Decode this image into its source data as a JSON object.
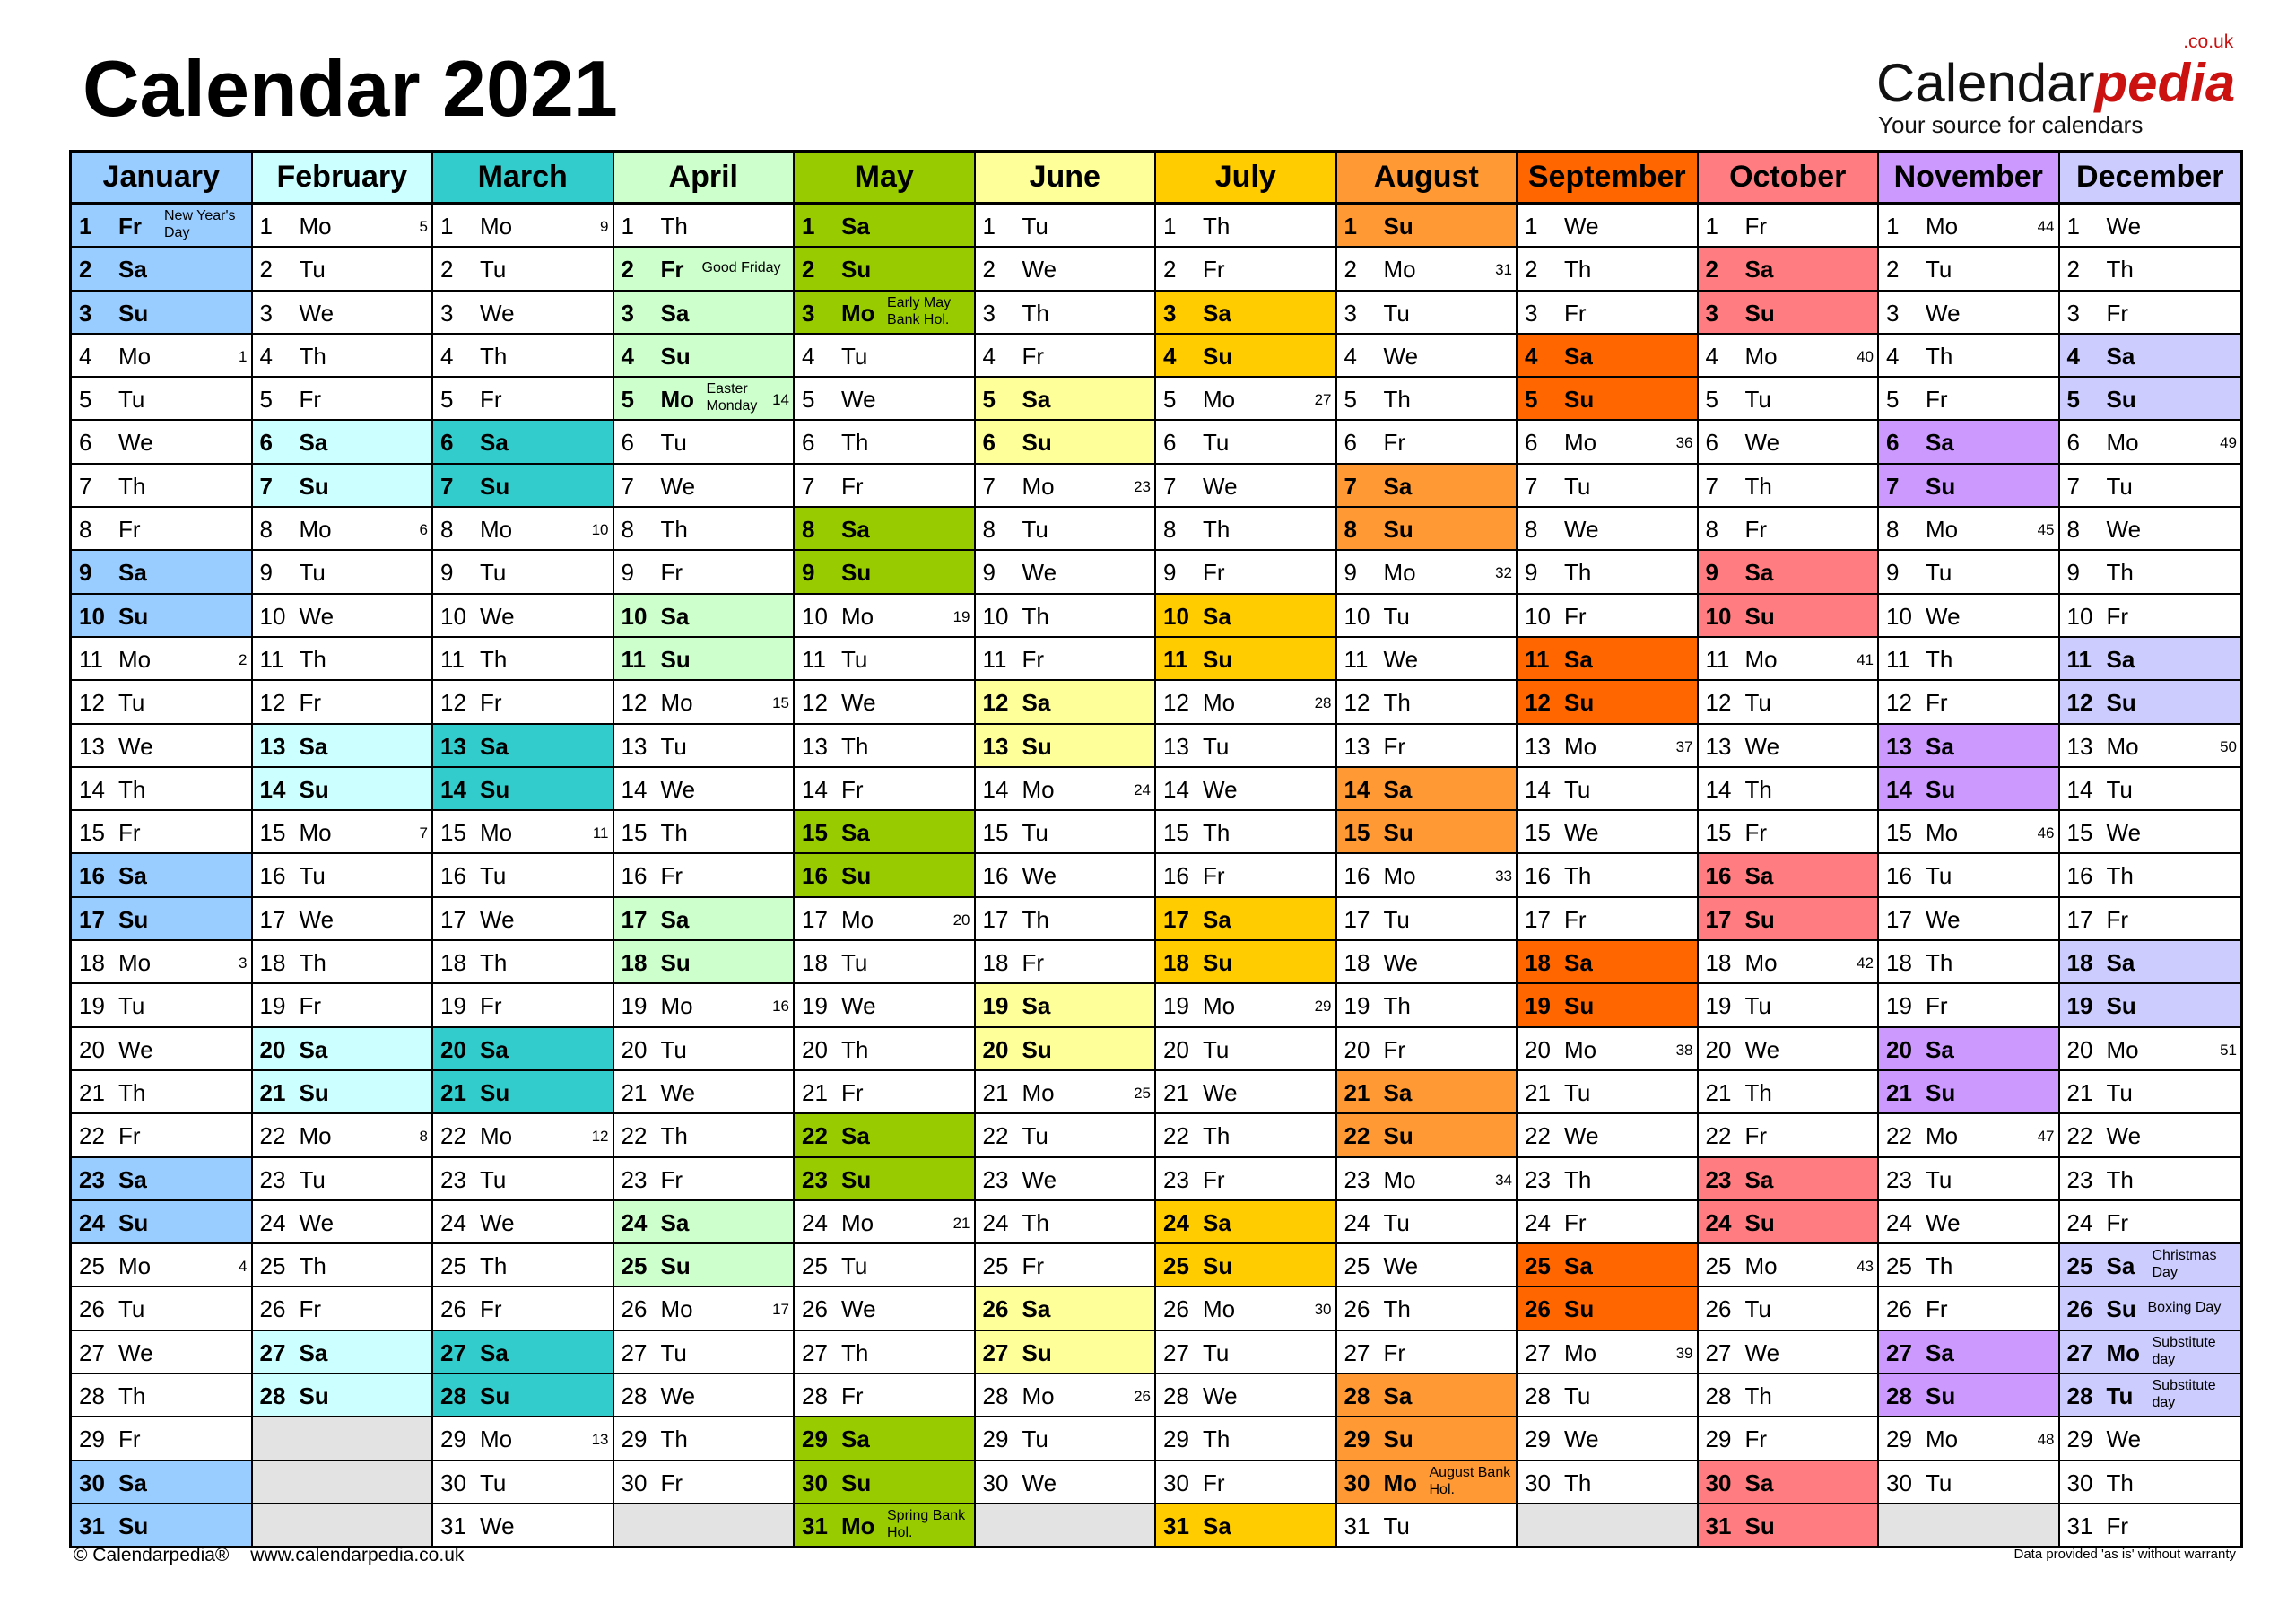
{
  "title": "Calendar 2021",
  "logo": {
    "text_main": "Calendar",
    "text_accent": "pedia",
    "domain": ".co.uk",
    "tagline": "Your source for calendars",
    "accent_color": "#cc1111"
  },
  "footer": {
    "copyright": "© Calendarpedia®",
    "url": "www.calendarpedia.co.uk",
    "disclaimer": "Data provided 'as is' without warranty"
  },
  "empty_color": "#e3e3e3",
  "months": [
    {
      "name": "January",
      "color": "#99ccff",
      "days": [
        "1 Fr",
        "2 Sa",
        "3 Su",
        "4 Mo",
        "5 Tu",
        "6 We",
        "7 Th",
        "8 Fr",
        "9 Sa",
        "10 Su",
        "11 Mo",
        "12 Tu",
        "13 We",
        "14 Th",
        "15 Fr",
        "16 Sa",
        "17 Su",
        "18 Mo",
        "19 Tu",
        "20 We",
        "21 Th",
        "22 Fr",
        "23 Sa",
        "24 Su",
        "25 Mo",
        "26 Tu",
        "27 We",
        "28 Th",
        "29 Fr",
        "30 Sa",
        "31 Su"
      ],
      "weeks": {
        "4": "1",
        "11": "2",
        "18": "3",
        "25": "4"
      },
      "holidays": {
        "1": "New Year's Day"
      }
    },
    {
      "name": "February",
      "color": "#ccffff",
      "days": [
        "1 Mo",
        "2 Tu",
        "3 We",
        "4 Th",
        "5 Fr",
        "6 Sa",
        "7 Su",
        "8 Mo",
        "9 Tu",
        "10 We",
        "11 Th",
        "12 Fr",
        "13 Sa",
        "14 Su",
        "15 Mo",
        "16 Tu",
        "17 We",
        "18 Th",
        "19 Fr",
        "20 Sa",
        "21 Su",
        "22 Mo",
        "23 Tu",
        "24 We",
        "25 Th",
        "26 Fr",
        "27 Sa",
        "28 Su"
      ],
      "weeks": {
        "1": "5",
        "8": "6",
        "15": "7",
        "22": "8"
      },
      "holidays": {}
    },
    {
      "name": "March",
      "color": "#33cccc",
      "days": [
        "1 Mo",
        "2 Tu",
        "3 We",
        "4 Th",
        "5 Fr",
        "6 Sa",
        "7 Su",
        "8 Mo",
        "9 Tu",
        "10 We",
        "11 Th",
        "12 Fr",
        "13 Sa",
        "14 Su",
        "15 Mo",
        "16 Tu",
        "17 We",
        "18 Th",
        "19 Fr",
        "20 Sa",
        "21 Su",
        "22 Mo",
        "23 Tu",
        "24 We",
        "25 Th",
        "26 Fr",
        "27 Sa",
        "28 Su",
        "29 Mo",
        "30 Tu",
        "31 We"
      ],
      "weeks": {
        "1": "9",
        "8": "10",
        "15": "11",
        "22": "12",
        "29": "13"
      },
      "holidays": {}
    },
    {
      "name": "April",
      "color": "#ccffcc",
      "days": [
        "1 Th",
        "2 Fr",
        "3 Sa",
        "4 Su",
        "5 Mo",
        "6 Tu",
        "7 We",
        "8 Th",
        "9 Fr",
        "10 Sa",
        "11 Su",
        "12 Mo",
        "13 Tu",
        "14 We",
        "15 Th",
        "16 Fr",
        "17 Sa",
        "18 Su",
        "19 Mo",
        "20 Tu",
        "21 We",
        "22 Th",
        "23 Fr",
        "24 Sa",
        "25 Su",
        "26 Mo",
        "27 Tu",
        "28 We",
        "29 Th",
        "30 Fr"
      ],
      "weeks": {
        "5": "14",
        "12": "15",
        "19": "16",
        "26": "17"
      },
      "holidays": {
        "2": "Good Friday",
        "5": "Easter Monday"
      }
    },
    {
      "name": "May",
      "color": "#99cc00",
      "days": [
        "1 Sa",
        "2 Su",
        "3 Mo",
        "4 Tu",
        "5 We",
        "6 Th",
        "7 Fr",
        "8 Sa",
        "9 Su",
        "10 Mo",
        "11 Tu",
        "12 We",
        "13 Th",
        "14 Fr",
        "15 Sa",
        "16 Su",
        "17 Mo",
        "18 Tu",
        "19 We",
        "20 Th",
        "21 Fr",
        "22 Sa",
        "23 Su",
        "24 Mo",
        "25 Tu",
        "26 We",
        "27 Th",
        "28 Fr",
        "29 Sa",
        "30 Su",
        "31 Mo"
      ],
      "weeks": {
        "10": "19",
        "17": "20",
        "24": "21"
      },
      "holidays": {
        "3": "Early May Bank Hol.",
        "31": "Spring Bank Hol."
      }
    },
    {
      "name": "June",
      "color": "#ffff99",
      "days": [
        "1 Tu",
        "2 We",
        "3 Th",
        "4 Fr",
        "5 Sa",
        "6 Su",
        "7 Mo",
        "8 Tu",
        "9 We",
        "10 Th",
        "11 Fr",
        "12 Sa",
        "13 Su",
        "14 Mo",
        "15 Tu",
        "16 We",
        "17 Th",
        "18 Fr",
        "19 Sa",
        "20 Su",
        "21 Mo",
        "22 Tu",
        "23 We",
        "24 Th",
        "25 Fr",
        "26 Sa",
        "27 Su",
        "28 Mo",
        "29 Tu",
        "30 We"
      ],
      "weeks": {
        "7": "23",
        "14": "24",
        "21": "25",
        "28": "26"
      },
      "holidays": {}
    },
    {
      "name": "July",
      "color": "#ffcc00",
      "days": [
        "1 Th",
        "2 Fr",
        "3 Sa",
        "4 Su",
        "5 Mo",
        "6 Tu",
        "7 We",
        "8 Th",
        "9 Fr",
        "10 Sa",
        "11 Su",
        "12 Mo",
        "13 Tu",
        "14 We",
        "15 Th",
        "16 Fr",
        "17 Sa",
        "18 Su",
        "19 Mo",
        "20 Tu",
        "21 We",
        "22 Th",
        "23 Fr",
        "24 Sa",
        "25 Su",
        "26 Mo",
        "27 Tu",
        "28 We",
        "29 Th",
        "30 Fr",
        "31 Sa"
      ],
      "weeks": {
        "5": "27",
        "12": "28",
        "19": "29",
        "26": "30"
      },
      "holidays": {}
    },
    {
      "name": "August",
      "color": "#ff9933",
      "days": [
        "1 Su",
        "2 Mo",
        "3 Tu",
        "4 We",
        "5 Th",
        "6 Fr",
        "7 Sa",
        "8 Su",
        "9 Mo",
        "10 Tu",
        "11 We",
        "12 Th",
        "13 Fr",
        "14 Sa",
        "15 Su",
        "16 Mo",
        "17 Tu",
        "18 We",
        "19 Th",
        "20 Fr",
        "21 Sa",
        "22 Su",
        "23 Mo",
        "24 Tu",
        "25 We",
        "26 Th",
        "27 Fr",
        "28 Sa",
        "29 Su",
        "30 Mo",
        "31 Tu"
      ],
      "weeks": {
        "2": "31",
        "9": "32",
        "16": "33",
        "23": "34"
      },
      "holidays": {
        "30": "August Bank Hol."
      }
    },
    {
      "name": "September",
      "color": "#ff6600",
      "days": [
        "1 We",
        "2 Th",
        "3 Fr",
        "4 Sa",
        "5 Su",
        "6 Mo",
        "7 Tu",
        "8 We",
        "9 Th",
        "10 Fr",
        "11 Sa",
        "12 Su",
        "13 Mo",
        "14 Tu",
        "15 We",
        "16 Th",
        "17 Fr",
        "18 Sa",
        "19 Su",
        "20 Mo",
        "21 Tu",
        "22 We",
        "23 Th",
        "24 Fr",
        "25 Sa",
        "26 Su",
        "27 Mo",
        "28 Tu",
        "29 We",
        "30 Th"
      ],
      "weeks": {
        "6": "36",
        "13": "37",
        "20": "38",
        "27": "39"
      },
      "holidays": {}
    },
    {
      "name": "October",
      "color": "#ff7c80",
      "days": [
        "1 Fr",
        "2 Sa",
        "3 Su",
        "4 Mo",
        "5 Tu",
        "6 We",
        "7 Th",
        "8 Fr",
        "9 Sa",
        "10 Su",
        "11 Mo",
        "12 Tu",
        "13 We",
        "14 Th",
        "15 Fr",
        "16 Sa",
        "17 Su",
        "18 Mo",
        "19 Tu",
        "20 We",
        "21 Th",
        "22 Fr",
        "23 Sa",
        "24 Su",
        "25 Mo",
        "26 Tu",
        "27 We",
        "28 Th",
        "29 Fr",
        "30 Sa",
        "31 Su"
      ],
      "weeks": {
        "4": "40",
        "11": "41",
        "18": "42",
        "25": "43"
      },
      "holidays": {}
    },
    {
      "name": "November",
      "color": "#cc99ff",
      "days": [
        "1 Mo",
        "2 Tu",
        "3 We",
        "4 Th",
        "5 Fr",
        "6 Sa",
        "7 Su",
        "8 Mo",
        "9 Tu",
        "10 We",
        "11 Th",
        "12 Fr",
        "13 Sa",
        "14 Su",
        "15 Mo",
        "16 Tu",
        "17 We",
        "18 Th",
        "19 Fr",
        "20 Sa",
        "21 Su",
        "22 Mo",
        "23 Tu",
        "24 We",
        "25 Th",
        "26 Fr",
        "27 Sa",
        "28 Su",
        "29 Mo",
        "30 Tu"
      ],
      "weeks": {
        "1": "44",
        "8": "45",
        "15": "46",
        "22": "47",
        "29": "48"
      },
      "holidays": {}
    },
    {
      "name": "December",
      "color": "#ccccff",
      "days": [
        "1 We",
        "2 Th",
        "3 Fr",
        "4 Sa",
        "5 Su",
        "6 Mo",
        "7 Tu",
        "8 We",
        "9 Th",
        "10 Fr",
        "11 Sa",
        "12 Su",
        "13 Mo",
        "14 Tu",
        "15 We",
        "16 Th",
        "17 Fr",
        "18 Sa",
        "19 Su",
        "20 Mo",
        "21 Tu",
        "22 We",
        "23 Th",
        "24 Fr",
        "25 Sa",
        "26 Su",
        "27 Mo",
        "28 Tu",
        "29 We",
        "30 Th",
        "31 Fr"
      ],
      "weeks": {
        "6": "49",
        "13": "50",
        "20": "51"
      },
      "holidays": {
        "25": "Christmas Day",
        "26": "Boxing Day",
        "27": "Substitute day",
        "28": "Substitute day"
      }
    }
  ]
}
